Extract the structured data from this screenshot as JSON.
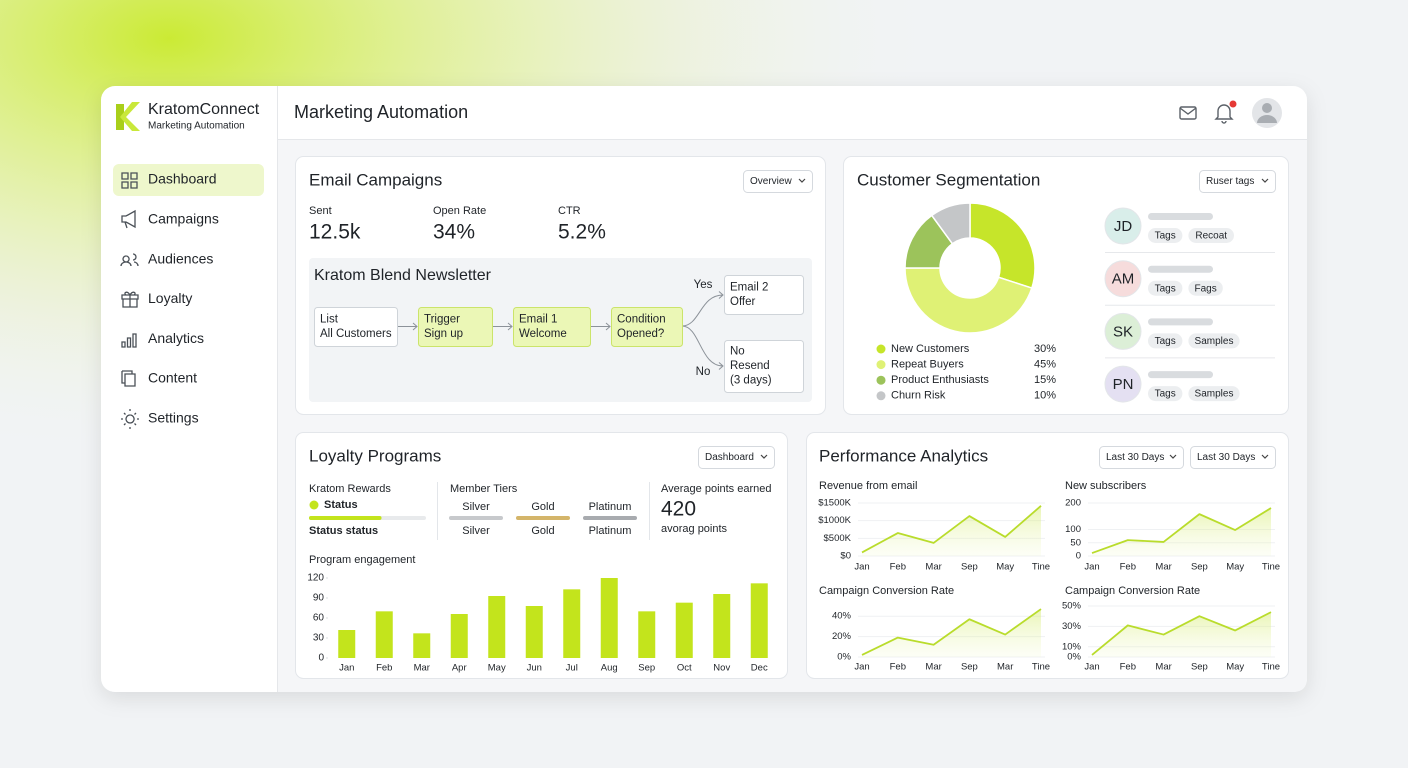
{
  "brand": {
    "name": "KratomConnect",
    "tagline": "Marketing Automation"
  },
  "nav": {
    "items": [
      "Dashboard",
      "Campaigns",
      "Audiences",
      "Loyalty",
      "Analytics",
      "Content",
      "Settings"
    ],
    "active": 0
  },
  "header": {
    "title": "Marketing Automation"
  },
  "email_campaigns": {
    "title": "Email Campaigns",
    "dropdown": "Overview",
    "stats": [
      {
        "label": "Sent",
        "value": "12.5k"
      },
      {
        "label": "Open Rate",
        "value": "34%"
      },
      {
        "label": "CTR",
        "value": "5.2%"
      }
    ],
    "flow": {
      "title": "Kratom Blend Newsletter",
      "nodes": [
        {
          "lines": [
            "List",
            "All Customers"
          ]
        },
        {
          "lines": [
            "Trigger",
            "Sign up"
          ]
        },
        {
          "lines": [
            "Email 1",
            "Welcome"
          ]
        },
        {
          "lines": [
            "Condition",
            "Opened?"
          ]
        },
        {
          "lines": [
            "Email 2",
            "Offer"
          ]
        },
        {
          "lines": [
            "No",
            "Resend",
            "(3 days)"
          ]
        }
      ],
      "yes": "Yes",
      "no": "No"
    }
  },
  "segmentation": {
    "title": "Customer Segmentation",
    "dropdown": "Ruser tags",
    "chart": {
      "type": "pie",
      "categories": [
        "New Customers",
        "Repeat Buyers",
        "Product Enthusiasts",
        "Churn Risk"
      ],
      "values": [
        30,
        45,
        15,
        10
      ],
      "value_labels": [
        "30%",
        "45%",
        "15%",
        "10%"
      ],
      "colors": [
        "#c6e52a",
        "#dff175",
        "#9cc35b",
        "#c4c6c8"
      ]
    },
    "contacts": [
      {
        "initials": "JD",
        "tags": [
          "Tags",
          "Recoat"
        ]
      },
      {
        "initials": "AM",
        "tags": [
          "Tags",
          "Fags"
        ]
      },
      {
        "initials": "SK",
        "tags": [
          "Tags",
          "Samples"
        ]
      },
      {
        "initials": "PN",
        "tags": [
          "Tags",
          "Samples"
        ]
      }
    ]
  },
  "loyalty": {
    "title": "Loyalty Programs",
    "dropdown": "Dashboard",
    "rewards": {
      "title": "Kratom Rewards",
      "status": "Status",
      "progress": 62,
      "caption": "Status status"
    },
    "tiers": {
      "title": "Member Tiers",
      "names": [
        "Silver",
        "Gold",
        "Platinum"
      ],
      "labels": [
        "Silver",
        "Gold",
        "Platinum"
      ]
    },
    "points": {
      "title": "Average points earned",
      "value": 420,
      "caption": "avorag points"
    },
    "chart": {
      "type": "bar",
      "title": "Program engagement",
      "categories": [
        "Jan",
        "Feb",
        "Mar",
        "Apr",
        "May",
        "Jun",
        "Jul",
        "Aug",
        "Sep",
        "Oct",
        "Nov",
        "Dec"
      ],
      "values": [
        42,
        70,
        37,
        66,
        93,
        78,
        103,
        120,
        70,
        83,
        96,
        112
      ],
      "color": "#c3e41c",
      "ylim": [
        0,
        120
      ],
      "yticks": [
        0,
        30,
        60,
        90,
        120
      ]
    }
  },
  "performance": {
    "title": "Performance Analytics",
    "dropdowns": [
      "Last 30 Days",
      "Last 30 Days"
    ],
    "charts": [
      {
        "type": "line",
        "title": "Revenue from email",
        "categories": [
          "Jan",
          "Feb",
          "Mar",
          "Sep",
          "May",
          "Tine"
        ],
        "values": [
          100000,
          650000,
          370000,
          1130000,
          540000,
          1420000
        ],
        "color": "#b9dc2c",
        "ylim": [
          0,
          1500000
        ],
        "yticks": [
          {
            "value": 0,
            "label": "$0"
          },
          {
            "value": 500000,
            "label": "$500K"
          },
          {
            "value": 1000000,
            "label": "$1000K"
          },
          {
            "value": 1500000,
            "label": "$1500K"
          }
        ]
      },
      {
        "type": "line",
        "title": "New subscribers",
        "categories": [
          "Jan",
          "Feb",
          "Mar",
          "Sep",
          "May",
          "Tine"
        ],
        "values": [
          11,
          60,
          53,
          158,
          98,
          181
        ],
        "color": "#b9dc2c",
        "ylim": [
          0,
          200
        ],
        "yticks": [
          0,
          50,
          100,
          200
        ]
      },
      {
        "type": "line",
        "title": "Campaign Conversion Rate",
        "categories": [
          "Jan",
          "Feb",
          "Mar",
          "Sep",
          "Mar",
          "Tine"
        ],
        "values": [
          2,
          19,
          12,
          37,
          22,
          47
        ],
        "color": "#b9dc2c",
        "ylim": [
          0,
          50
        ],
        "yticks": [
          {
            "value": 0,
            "label": "0%"
          },
          {
            "value": 20,
            "label": "20%"
          },
          {
            "value": 40,
            "label": "40%"
          }
        ]
      },
      {
        "type": "line",
        "title": "Campaign Conversion Rate",
        "categories": [
          "Jan",
          "Feb",
          "Mar",
          "Sep",
          "May",
          "Tine"
        ],
        "values": [
          2,
          31,
          22,
          40,
          26,
          44
        ],
        "color": "#b9dc2c",
        "ylim": [
          0,
          50
        ],
        "yticks": [
          {
            "value": 0,
            "label": "0%"
          },
          {
            "value": 10,
            "label": "10%"
          },
          {
            "value": 30,
            "label": "30%"
          },
          {
            "value": 50,
            "label": "50%"
          }
        ]
      }
    ]
  }
}
